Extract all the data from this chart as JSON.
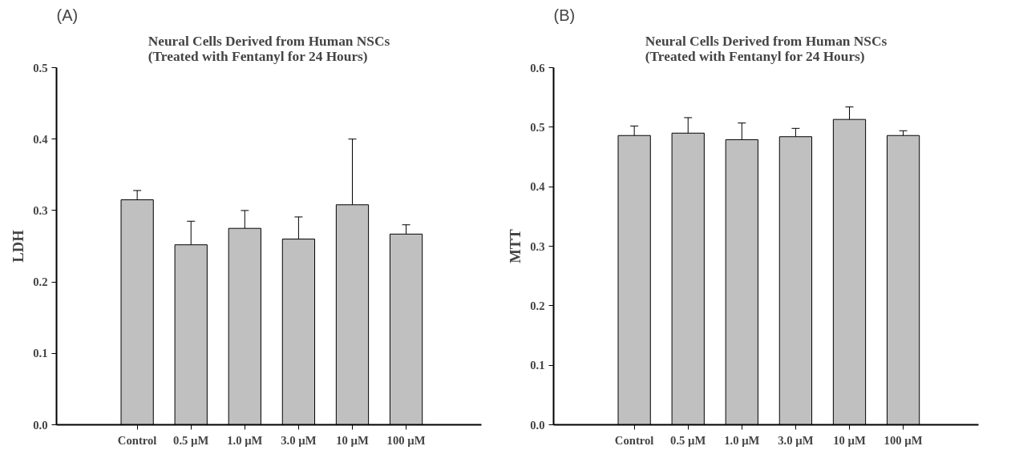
{
  "chart_data": [
    {
      "type": "bar",
      "title": "Neural Cells Derived from Human NSCs\n(Treated with Fentanyl for 24 Hours)",
      "ylabel": "LDH",
      "annotations": [
        "(A)"
      ],
      "categories": [
        "Control",
        "0.5 µM",
        "1.0 µM",
        "3.0 µM",
        "10 µM",
        "100 µM"
      ],
      "values": [
        0.315,
        0.252,
        0.275,
        0.26,
        0.308,
        0.267
      ],
      "errors": [
        [
          0.315,
          0.328
        ],
        [
          0.252,
          0.285
        ],
        [
          0.275,
          0.3
        ],
        [
          0.26,
          0.291
        ],
        [
          0.308,
          0.4
        ],
        [
          0.267,
          0.28
        ]
      ],
      "color": "#c0c0c0",
      "ylim": [
        0,
        0.5
      ],
      "yticks": [
        {
          "value": 0,
          "label": "0.0"
        },
        0.1,
        0.2,
        0.3,
        0.4,
        0.5
      ],
      "grid": false
    },
    {
      "type": "bar",
      "title": "Neural Cells Derived from Human NSCs\n(Treated with Fentanyl for 24 Hours)",
      "ylabel": "MTT",
      "annotations": [
        "(B)"
      ],
      "categories": [
        "Control",
        "0.5 µM",
        "1.0 µM",
        "3.0 µM",
        "10 µM",
        "100 µM"
      ],
      "values": [
        0.486,
        0.49,
        0.479,
        0.484,
        0.513,
        0.486
      ],
      "errors": [
        [
          0.486,
          0.502
        ],
        [
          0.49,
          0.516
        ],
        [
          0.479,
          0.507
        ],
        [
          0.484,
          0.498
        ],
        [
          0.513,
          0.534
        ],
        [
          0.486,
          0.494
        ]
      ],
      "color": "#c0c0c0",
      "ylim": [
        0,
        0.6
      ],
      "yticks": [
        {
          "value": 0,
          "label": "0.0"
        },
        0.1,
        0.2,
        0.3,
        0.4,
        0.5,
        0.6
      ],
      "grid": false
    }
  ]
}
